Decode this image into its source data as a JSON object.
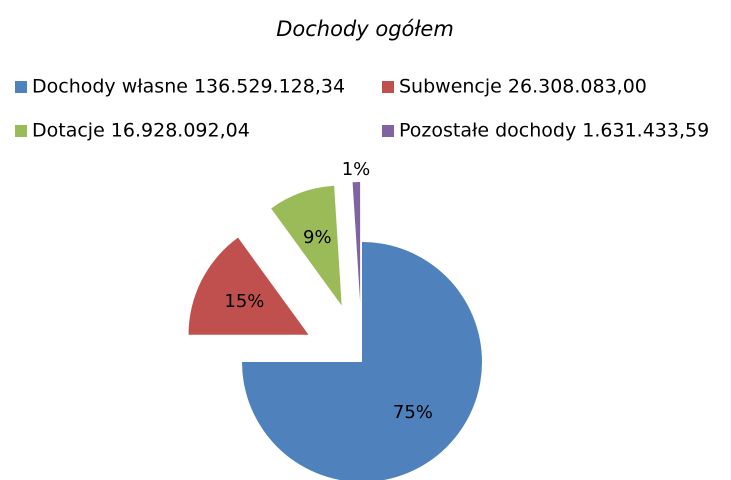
{
  "chart_data": {
    "type": "pie",
    "title": "Dochody ogółem",
    "categories": [
      "Dochody własne 136.529.128,34",
      "Subwencje 26.308.083,00",
      "Dotacje 16.928.092,04",
      "Pozostałe dochody 1.631.433,59"
    ],
    "values": [
      75,
      15,
      9,
      1
    ],
    "value_labels": [
      "75%",
      "15%",
      "9%",
      "1%"
    ],
    "colors": [
      "#4f81bd",
      "#c0504d",
      "#9bbb59",
      "#8064a2"
    ],
    "legend": "top"
  }
}
